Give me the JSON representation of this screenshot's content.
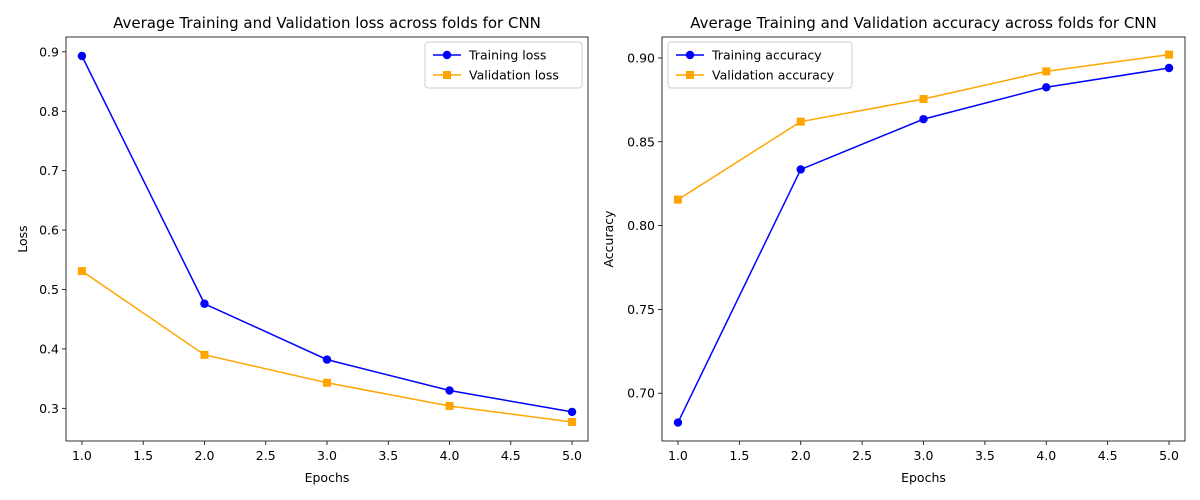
{
  "chart_data": [
    {
      "type": "line",
      "title": "Average Training and Validation loss across folds for CNN",
      "xlabel": "Epochs",
      "ylabel": "Loss",
      "xlim": [
        0.87,
        5.13
      ],
      "ylim": [
        0.245,
        0.925
      ],
      "xticks": [
        "1.0",
        "1.5",
        "2.0",
        "2.5",
        "3.0",
        "3.5",
        "4.0",
        "4.5",
        "5.0"
      ],
      "xtick_values": [
        1.0,
        1.5,
        2.0,
        2.5,
        3.0,
        3.5,
        4.0,
        4.5,
        5.0
      ],
      "yticks": [
        "0.3",
        "0.4",
        "0.5",
        "0.6",
        "0.7",
        "0.8",
        "0.9"
      ],
      "ytick_values": [
        0.3,
        0.4,
        0.5,
        0.6,
        0.7,
        0.8,
        0.9
      ],
      "grid": false,
      "legend_position": "top-right",
      "x": [
        1,
        2,
        3,
        4,
        5
      ],
      "series": [
        {
          "name": "Training loss",
          "values": [
            0.893,
            0.476,
            0.382,
            0.33,
            0.294
          ],
          "color": "#0000ff",
          "marker": "circle"
        },
        {
          "name": "Validation loss",
          "values": [
            0.531,
            0.39,
            0.343,
            0.304,
            0.277
          ],
          "color": "#ffa500",
          "marker": "square"
        }
      ]
    },
    {
      "type": "line",
      "title": "Average Training and Validation accuracy across folds for CNN",
      "xlabel": "Epochs",
      "ylabel": "Accuracy",
      "xlim": [
        0.87,
        5.13
      ],
      "ylim": [
        0.6715,
        0.9125
      ],
      "xticks": [
        "1.0",
        "1.5",
        "2.0",
        "2.5",
        "3.0",
        "3.5",
        "4.0",
        "4.5",
        "5.0"
      ],
      "xtick_values": [
        1.0,
        1.5,
        2.0,
        2.5,
        3.0,
        3.5,
        4.0,
        4.5,
        5.0
      ],
      "yticks": [
        "0.70",
        "0.75",
        "0.80",
        "0.85",
        "0.90"
      ],
      "ytick_values": [
        0.7,
        0.75,
        0.8,
        0.85,
        0.9
      ],
      "grid": false,
      "legend_position": "top-left",
      "x": [
        1,
        2,
        3,
        4,
        5
      ],
      "series": [
        {
          "name": "Training accuracy",
          "values": [
            0.6825,
            0.8335,
            0.8635,
            0.8825,
            0.894
          ],
          "color": "#0000ff",
          "marker": "circle"
        },
        {
          "name": "Validation accuracy",
          "values": [
            0.8155,
            0.862,
            0.8755,
            0.892,
            0.902
          ],
          "color": "#ffa500",
          "marker": "square"
        }
      ]
    }
  ]
}
